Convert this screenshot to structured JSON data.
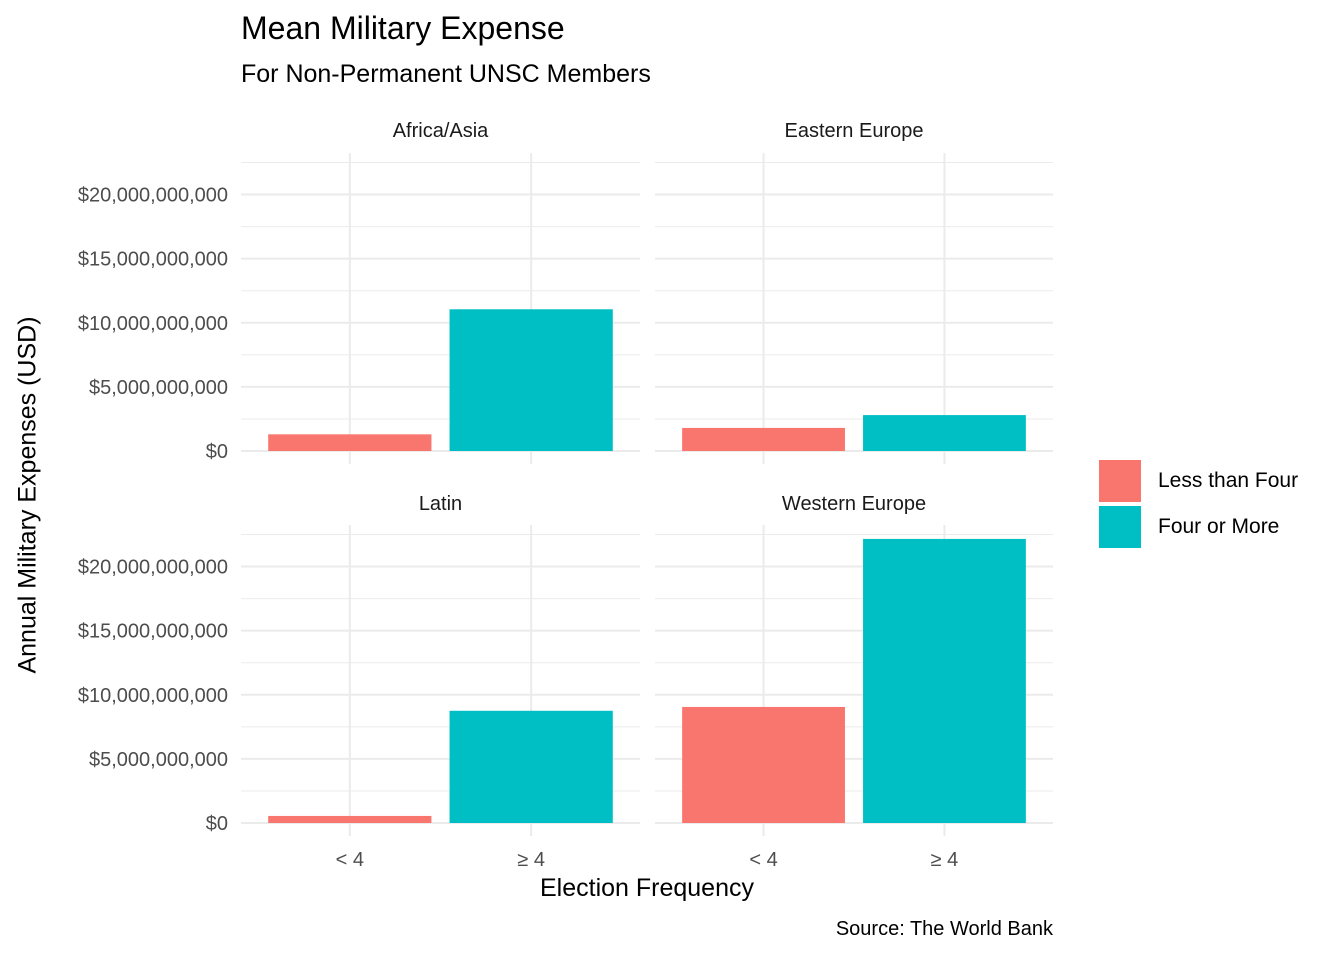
{
  "chart_data": {
    "type": "bar",
    "title": "Mean Military Expense",
    "subtitle": "For Non-Permanent UNSC Members",
    "caption": "Source: The World Bank",
    "xlabel": "Election Frequency",
    "ylabel": "Annual Military Expenses (USD)",
    "ylim": [
      0,
      23000000000
    ],
    "yticks": [
      0,
      5000000000,
      10000000000,
      15000000000,
      20000000000
    ],
    "ytick_labels": [
      "$0",
      "$5,000,000,000",
      "$10,000,000,000",
      "$15,000,000,000",
      "$20,000,000,000"
    ],
    "categories": [
      "< 4",
      "≥ 4"
    ],
    "grid": true,
    "legend_position": "right",
    "legend": [
      {
        "name": "Less than Four",
        "color": "#F8766D"
      },
      {
        "name": "Four or More",
        "color": "#00BFC4"
      }
    ],
    "facets": [
      {
        "name": "Africa/Asia",
        "values": [
          1300000000,
          11050000000
        ]
      },
      {
        "name": "Eastern Europe",
        "values": [
          1800000000,
          2800000000
        ]
      },
      {
        "name": "Latin",
        "values": [
          550000000,
          8750000000
        ]
      },
      {
        "name": "Western Europe",
        "values": [
          9050000000,
          22150000000
        ]
      }
    ]
  }
}
